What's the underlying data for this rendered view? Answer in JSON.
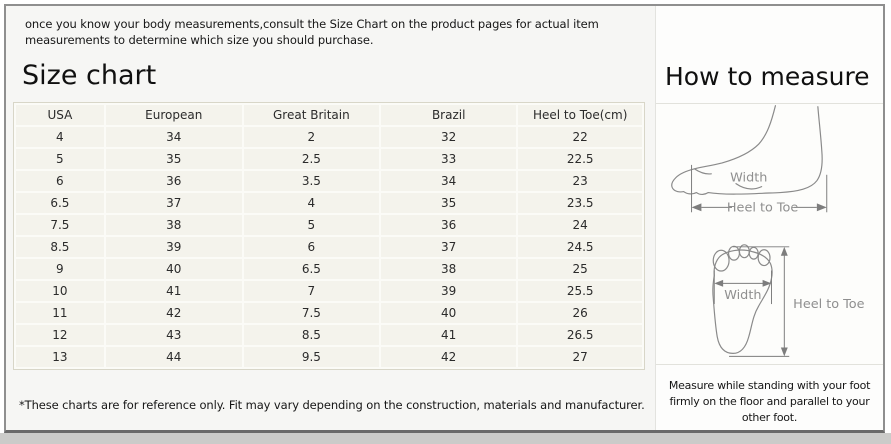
{
  "intro": "once you know your body measurements,consult the Size Chart on the product pages for actual item measurements to determine which size you should purchase.",
  "size_chart": {
    "title": "Size chart",
    "columns": [
      "USA",
      "European",
      "Great Britain",
      "Brazil",
      "Heel to Toe(cm)"
    ],
    "rows": [
      [
        "4",
        "34",
        "2",
        "32",
        "22"
      ],
      [
        "5",
        "35",
        "2.5",
        "33",
        "22.5"
      ],
      [
        "6",
        "36",
        "3.5",
        "34",
        "23"
      ],
      [
        "6.5",
        "37",
        "4",
        "35",
        "23.5"
      ],
      [
        "7.5",
        "38",
        "5",
        "36",
        "24"
      ],
      [
        "8.5",
        "39",
        "6",
        "37",
        "24.5"
      ],
      [
        "9",
        "40",
        "6.5",
        "38",
        "25"
      ],
      [
        "10",
        "41",
        "7",
        "39",
        "25.5"
      ],
      [
        "11",
        "42",
        "7.5",
        "40",
        "26"
      ],
      [
        "12",
        "43",
        "8.5",
        "41",
        "26.5"
      ],
      [
        "13",
        "44",
        "9.5",
        "42",
        "27"
      ]
    ],
    "footnote": "*These charts are for reference only. Fit may vary depending on the construction, materials and manufacturer."
  },
  "how_to_measure": {
    "title": "How to measure",
    "labels": {
      "width": "Width",
      "heel_to_toe": "Heel to Toe"
    },
    "note": "Measure while standing with your foot firmly on the floor and parallel to your other foot."
  },
  "colors": {
    "cell_bg": "#f4f3ec",
    "table_gap": "#fbfbf7",
    "table_outline": "#d8d6c8",
    "panel_left_bg": "#f6f6f4",
    "panel_right_bg": "#fdfdfc",
    "frame_border": "#8f8f8f",
    "diagram_line": "#8a8a8a",
    "label_gray": "#8f8f8f"
  },
  "chart_data": {
    "type": "table",
    "title": "Size chart",
    "columns": [
      "USA",
      "European",
      "Great Britain",
      "Brazil",
      "Heel to Toe(cm)"
    ],
    "rows": [
      [
        "4",
        "34",
        "2",
        "32",
        "22"
      ],
      [
        "5",
        "35",
        "2.5",
        "33",
        "22.5"
      ],
      [
        "6",
        "36",
        "3.5",
        "34",
        "23"
      ],
      [
        "6.5",
        "37",
        "4",
        "35",
        "23.5"
      ],
      [
        "7.5",
        "38",
        "5",
        "36",
        "24"
      ],
      [
        "8.5",
        "39",
        "6",
        "37",
        "24.5"
      ],
      [
        "9",
        "40",
        "6.5",
        "38",
        "25"
      ],
      [
        "10",
        "41",
        "7",
        "39",
        "25.5"
      ],
      [
        "11",
        "42",
        "7.5",
        "40",
        "26"
      ],
      [
        "12",
        "43",
        "8.5",
        "41",
        "26.5"
      ],
      [
        "13",
        "44",
        "9.5",
        "42",
        "27"
      ]
    ]
  }
}
